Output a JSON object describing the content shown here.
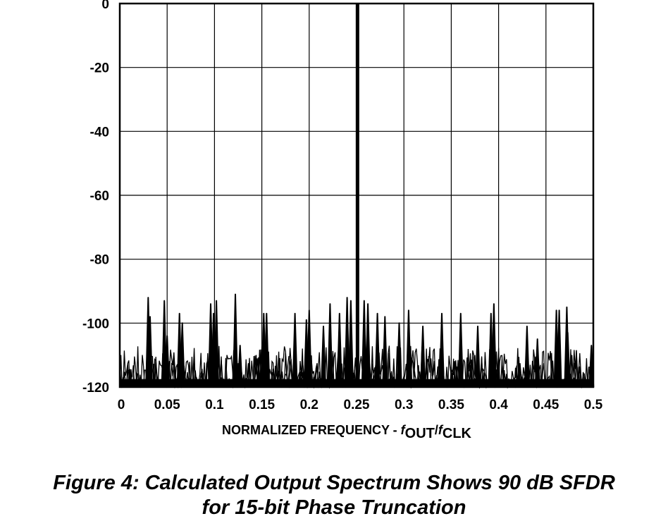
{
  "chart_data": {
    "type": "line",
    "title": "",
    "xlabel_main": "NORMALIZED FREQUENCY - ",
    "xlabel_f1": "f",
    "xlabel_sub1": "OUT",
    "xlabel_slash": "/",
    "xlabel_f2": "f",
    "xlabel_sub2": "CLK",
    "ylabel": "",
    "xlim": [
      0,
      0.5
    ],
    "ylim": [
      -120,
      0
    ],
    "x_ticks": [
      {
        "value": 0,
        "label": "0"
      },
      {
        "value": 0.05,
        "label": "0.05"
      },
      {
        "value": 0.1,
        "label": "0.1"
      },
      {
        "value": 0.15,
        "label": "0.15"
      },
      {
        "value": 0.2,
        "label": "0.2"
      },
      {
        "value": 0.25,
        "label": "0.25"
      },
      {
        "value": 0.3,
        "label": "0.3"
      },
      {
        "value": 0.35,
        "label": "0.35"
      },
      {
        "value": 0.4,
        "label": "0.4"
      },
      {
        "value": 0.45,
        "label": "0.45"
      },
      {
        "value": 0.5,
        "label": "0.5"
      }
    ],
    "y_ticks": [
      {
        "value": 0,
        "label": "0"
      },
      {
        "value": -20,
        "label": "-20"
      },
      {
        "value": -40,
        "label": "-40"
      },
      {
        "value": -60,
        "label": "-60"
      },
      {
        "value": -80,
        "label": "-80"
      },
      {
        "value": -100,
        "label": "-100"
      },
      {
        "value": -120,
        "label": "-120"
      }
    ],
    "grid": true,
    "fundamental": {
      "x": 0.251,
      "y": 0
    },
    "spurs": [
      {
        "x": 0.03,
        "y": -92
      },
      {
        "x": 0.032,
        "y": -98
      },
      {
        "x": 0.047,
        "y": -93
      },
      {
        "x": 0.05,
        "y": -104
      },
      {
        "x": 0.063,
        "y": -97
      },
      {
        "x": 0.066,
        "y": -100
      },
      {
        "x": 0.096,
        "y": -94
      },
      {
        "x": 0.099,
        "y": -97
      },
      {
        "x": 0.102,
        "y": -93
      },
      {
        "x": 0.122,
        "y": -91
      },
      {
        "x": 0.127,
        "y": -107
      },
      {
        "x": 0.152,
        "y": -97
      },
      {
        "x": 0.155,
        "y": -97
      },
      {
        "x": 0.185,
        "y": -97
      },
      {
        "x": 0.197,
        "y": -99
      },
      {
        "x": 0.2,
        "y": -96
      },
      {
        "x": 0.215,
        "y": -101
      },
      {
        "x": 0.222,
        "y": -94
      },
      {
        "x": 0.232,
        "y": -97
      },
      {
        "x": 0.24,
        "y": -92
      },
      {
        "x": 0.244,
        "y": -93
      },
      {
        "x": 0.258,
        "y": -93
      },
      {
        "x": 0.262,
        "y": -94
      },
      {
        "x": 0.272,
        "y": -97
      },
      {
        "x": 0.28,
        "y": -98
      },
      {
        "x": 0.295,
        "y": -100
      },
      {
        "x": 0.305,
        "y": -96
      },
      {
        "x": 0.32,
        "y": -101
      },
      {
        "x": 0.34,
        "y": -97
      },
      {
        "x": 0.36,
        "y": -97
      },
      {
        "x": 0.378,
        "y": -101
      },
      {
        "x": 0.392,
        "y": -97
      },
      {
        "x": 0.395,
        "y": -94
      },
      {
        "x": 0.43,
        "y": -101
      },
      {
        "x": 0.441,
        "y": -105
      },
      {
        "x": 0.461,
        "y": -96
      },
      {
        "x": 0.464,
        "y": -96
      },
      {
        "x": 0.473,
        "y": -103
      },
      {
        "x": 0.472,
        "y": -95
      },
      {
        "x": 0.498,
        "y": -107
      }
    ],
    "noise_floor": -119.5
  },
  "caption": {
    "line1": "Figure 4:   Calculated  Output  Spectrum  Shows 90 dB SFDR",
    "line2": "for 15-bit  Phase Truncation"
  }
}
